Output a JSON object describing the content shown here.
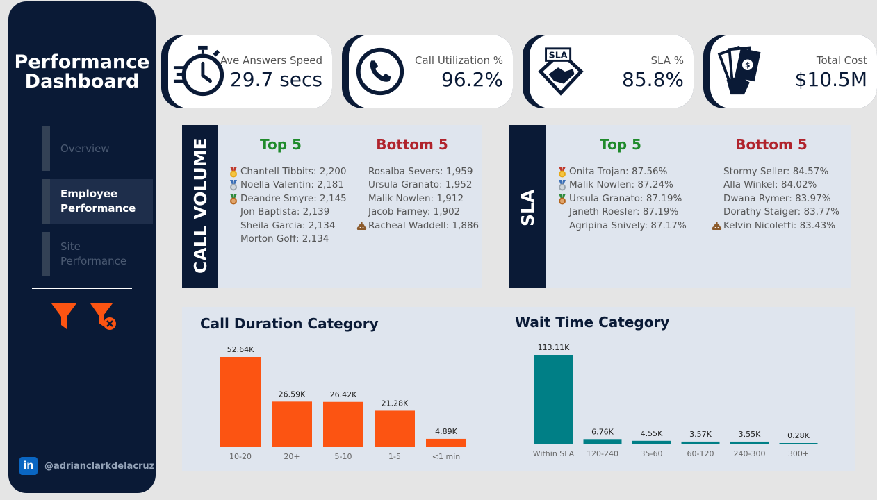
{
  "sidebar": {
    "title_line1": "Performance",
    "title_line2": "Dashboard",
    "nav": [
      {
        "line1": "Overview",
        "line2": ""
      },
      {
        "line1": "Employee",
        "line2": "Performance"
      },
      {
        "line1": "Site",
        "line2": "Performance"
      }
    ],
    "linkedin_icon": "in",
    "handle": "@adrianclarkdelacruz"
  },
  "kpis": [
    {
      "label": "Ave Answers Speed",
      "value": "29.7 secs",
      "icon": "stopwatch-icon"
    },
    {
      "label": "Call Utilization %",
      "value": "96.2%",
      "icon": "phone-icon"
    },
    {
      "label": "SLA %",
      "value": "85.8%",
      "icon": "sla-handshake-icon"
    },
    {
      "label": "Total Cost",
      "value": "$10.5M",
      "icon": "money-hand-icon"
    }
  ],
  "call_volume": {
    "title": "CALL VOLUME",
    "top_label": "Top 5",
    "bottom_label": "Bottom 5",
    "top": [
      "Chantell Tibbits: 2,200",
      "Noella Valentin: 2,181",
      "Deandre Smyre: 2,145",
      "Jon Baptista: 2,139",
      "Sheila Garcia: 2,134",
      "Morton Goff: 2,134"
    ],
    "bottom": [
      "Rosalba Severs: 1,959",
      "Ursula Granato: 1,952",
      "Malik Nowlen: 1,912",
      "Jacob Farney: 1,902",
      "Racheal Waddell: 1,886"
    ]
  },
  "sla": {
    "title": "SLA",
    "top_label": "Top 5",
    "bottom_label": "Bottom 5",
    "top": [
      "Onita Trojan: 87.56%",
      "Malik Nowlen: 87.24%",
      "Ursula Granato: 87.19%",
      "Janeth Roesler: 87.19%",
      "Agripina Snively: 87.17%"
    ],
    "bottom": [
      "Stormy Seller: 84.57%",
      "Alla Winkel: 84.02%",
      "Dwana Rymer: 83.97%",
      "Dorathy Staiger: 83.77%",
      "Kelvin Nicoletti: 83.43%"
    ]
  },
  "colors": {
    "navy": "#0a1a36",
    "orange": "#fc5412",
    "teal": "#007f86"
  },
  "chart_data": [
    {
      "type": "bar",
      "title": "Call Duration Category",
      "categories": [
        "10-20",
        "20+",
        "5-10",
        "1-5",
        "<1 min"
      ],
      "values": [
        52.64,
        26.59,
        26.42,
        21.28,
        4.89
      ],
      "labels": [
        "52.64K",
        "26.59K",
        "26.42K",
        "21.28K",
        "4.89K"
      ],
      "unit": "K",
      "color": "#fc5412"
    },
    {
      "type": "bar",
      "title": "Wait Time Category",
      "categories": [
        "Within SLA",
        "120-240",
        "35-60",
        "60-120",
        "240-300",
        "300+"
      ],
      "values": [
        113.11,
        6.76,
        4.55,
        3.57,
        3.55,
        0.28
      ],
      "labels": [
        "113.11K",
        "6.76K",
        "4.55K",
        "3.57K",
        "3.55K",
        "0.28K"
      ],
      "unit": "K",
      "color": "#007f86"
    }
  ]
}
